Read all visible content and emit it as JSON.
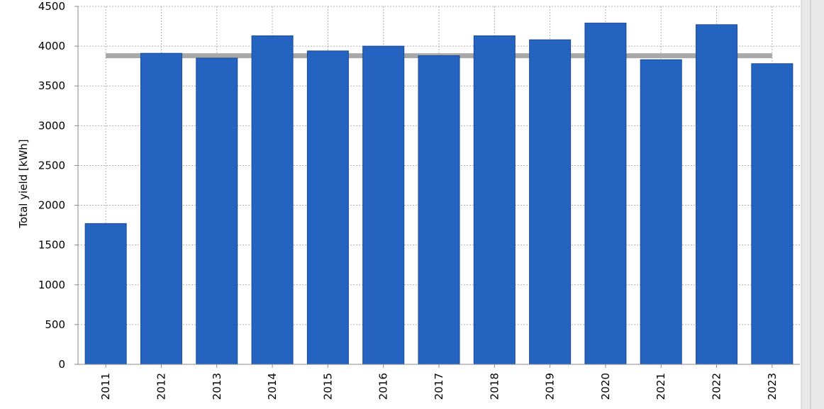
{
  "colors": {
    "background": "#ffffff",
    "plot_background": "#ffffff",
    "bar_fill": "#2563c1",
    "bar_stroke": "#1a4a96",
    "average_line": "#a8a8a8",
    "grid": "#b0b0b0",
    "right_frame": "#e8e8e8"
  },
  "chart_data": {
    "type": "bar",
    "title": "",
    "xlabel": "",
    "ylabel": "Total yield [kWh]",
    "categories": [
      "2011",
      "2012",
      "2013",
      "2014",
      "2015",
      "2016",
      "2017",
      "2018",
      "2019",
      "2020",
      "2021",
      "2022",
      "2023"
    ],
    "values": [
      1770,
      3910,
      3850,
      4130,
      3940,
      4000,
      3880,
      4130,
      4080,
      4290,
      3830,
      4270,
      3780
    ],
    "average": 3880,
    "ylim": [
      0,
      4500
    ],
    "yticks": [
      0,
      500,
      1000,
      1500,
      2000,
      2500,
      3000,
      3500,
      4000,
      4500
    ],
    "ytick_labels": [
      "0",
      "500",
      "1000",
      "1500",
      "2000",
      "2500",
      "3000",
      "3500",
      "4000",
      "4500"
    ],
    "grid": true,
    "legend": "none"
  }
}
